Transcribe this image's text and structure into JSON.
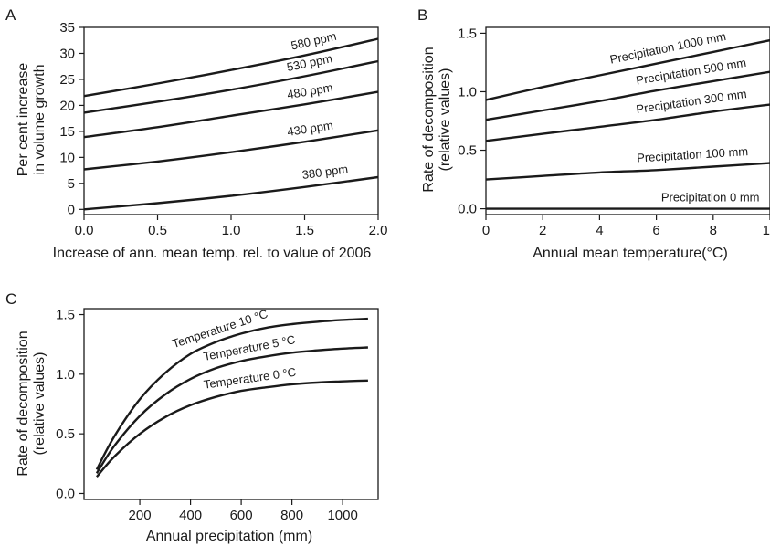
{
  "chart_data": [
    {
      "panel": "A",
      "type": "line",
      "xlabel": "Increase of ann. mean temp. rel. to value of 2006",
      "ylabel": [
        "Per cent increase",
        "in volume growth"
      ],
      "xlim": [
        0,
        2
      ],
      "ylim": [
        -1,
        35
      ],
      "xticks": [
        "0.0",
        "0.5",
        "1.0",
        "1.5",
        "2.0"
      ],
      "yticks": [
        "0",
        "5",
        "10",
        "15",
        "20",
        "25",
        "30",
        "35"
      ],
      "x": [
        0,
        0.5,
        1.0,
        1.5,
        2.0
      ],
      "series": [
        {
          "name": "580 ppm",
          "values": [
            21.8,
            24.2,
            26.8,
            29.6,
            32.8
          ]
        },
        {
          "name": "530 ppm",
          "values": [
            18.6,
            20.7,
            23.0,
            25.6,
            28.5
          ]
        },
        {
          "name": "480 ppm",
          "values": [
            13.9,
            15.8,
            18.0,
            20.2,
            22.6
          ]
        },
        {
          "name": "430 ppm",
          "values": [
            7.7,
            9.2,
            11.0,
            13.0,
            15.2
          ]
        },
        {
          "name": "380 ppm",
          "values": [
            0.0,
            1.2,
            2.6,
            4.3,
            6.2
          ]
        }
      ],
      "grid": false
    },
    {
      "panel": "B",
      "type": "line",
      "xlabel": "Annual mean temperature(°C)",
      "ylabel": [
        "Rate of decomposition",
        "(relative values)"
      ],
      "xlim": [
        0,
        10
      ],
      "ylim": [
        -0.05,
        1.55
      ],
      "xticks": [
        "0",
        "2",
        "4",
        "6",
        "8",
        "10"
      ],
      "yticks": [
        "0.0",
        "0.5",
        "1.0",
        "1.5"
      ],
      "x": [
        0,
        2,
        4,
        6,
        8,
        10
      ],
      "series": [
        {
          "name": "Precipitation 1000 mm",
          "values": [
            0.93,
            1.04,
            1.14,
            1.24,
            1.34,
            1.44
          ]
        },
        {
          "name": "Precipitation 500 mm",
          "values": [
            0.76,
            0.84,
            0.92,
            1.01,
            1.09,
            1.17
          ]
        },
        {
          "name": "Precipitation 300 mm",
          "values": [
            0.58,
            0.64,
            0.7,
            0.76,
            0.83,
            0.89
          ]
        },
        {
          "name": "Precipitation 100 mm",
          "values": [
            0.25,
            0.28,
            0.31,
            0.33,
            0.36,
            0.39
          ]
        },
        {
          "name": "Precipitation 0 mm",
          "values": [
            0.0,
            0.0,
            0.0,
            0.0,
            0.0,
            0.0
          ]
        }
      ],
      "grid": false
    },
    {
      "panel": "C",
      "type": "line",
      "xlabel": "Annual precipitation (mm)",
      "ylabel": [
        "Rate of decomposition",
        "(relative values)"
      ],
      "xlim": [
        -20,
        1140
      ],
      "ylim": [
        -0.05,
        1.55
      ],
      "xticks": [
        "200",
        "400",
        "600",
        "800",
        "1000"
      ],
      "yticks": [
        "0.0",
        "0.5",
        "1.0",
        "1.5"
      ],
      "x": [
        30,
        100,
        200,
        300,
        400,
        500,
        600,
        700,
        800,
        900,
        1000,
        1100
      ],
      "series": [
        {
          "name": "Temperature 10 °C",
          "values": [
            0.2,
            0.48,
            0.79,
            1.01,
            1.17,
            1.27,
            1.34,
            1.39,
            1.42,
            1.44,
            1.455,
            1.465
          ]
        },
        {
          "name": "Temperature 5 °C",
          "values": [
            0.17,
            0.4,
            0.65,
            0.83,
            0.96,
            1.05,
            1.11,
            1.15,
            1.18,
            1.2,
            1.215,
            1.225
          ]
        },
        {
          "name": "Temperature 0 °C",
          "values": [
            0.14,
            0.31,
            0.5,
            0.64,
            0.74,
            0.81,
            0.86,
            0.89,
            0.915,
            0.93,
            0.94,
            0.947
          ]
        }
      ],
      "grid": false
    }
  ]
}
